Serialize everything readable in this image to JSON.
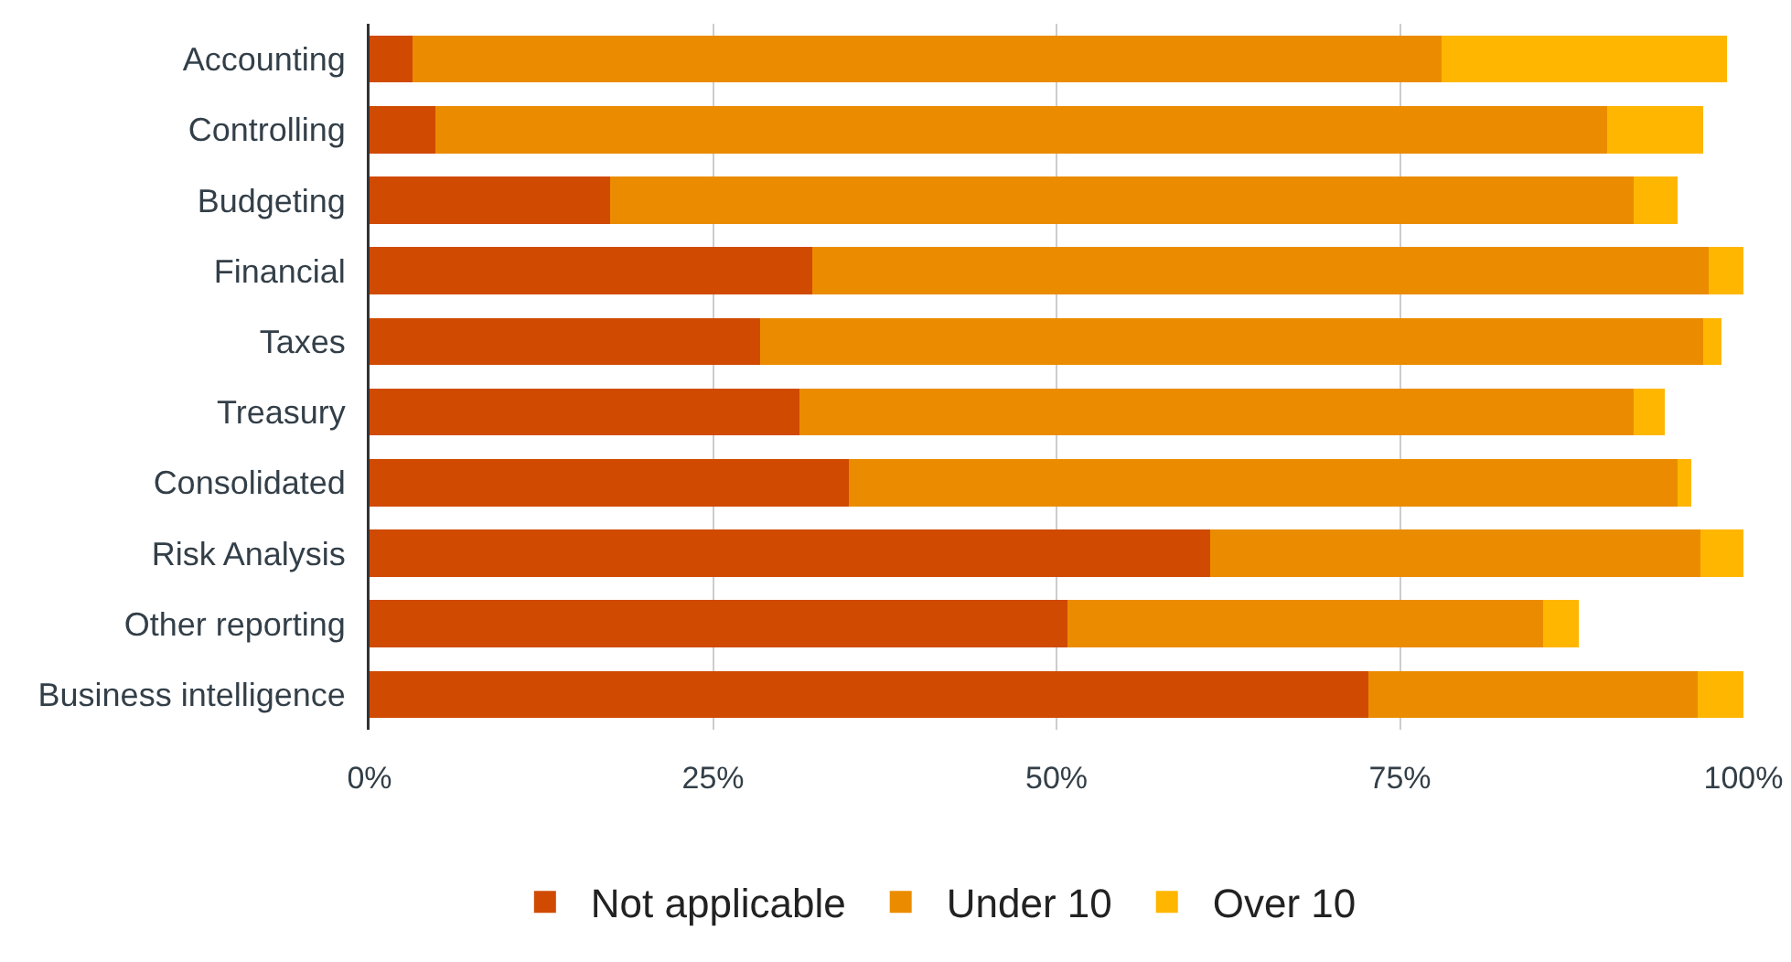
{
  "chart_data": {
    "type": "bar",
    "orientation": "horizontal",
    "stacked": true,
    "categories": [
      "Accounting",
      "Controlling",
      "Budgeting",
      "Financial",
      "Taxes",
      "Treasury",
      "Consolidated",
      "Risk Analysis",
      "Other reporting",
      "Business intelligence"
    ],
    "series": [
      {
        "name": "Not applicable",
        "color": "#d04a02",
        "values": [
          3.1,
          4.8,
          17.5,
          32.2,
          28.4,
          31.3,
          34.9,
          61.2,
          50.8,
          72.7
        ]
      },
      {
        "name": "Under 10",
        "color": "#eb8c00",
        "values": [
          74.9,
          85.3,
          74.5,
          65.3,
          68.7,
          60.7,
          60.3,
          35.7,
          34.6,
          24.0
        ]
      },
      {
        "name": "Over 10",
        "color": "#ffb600",
        "values": [
          20.8,
          7.0,
          3.2,
          2.5,
          1.3,
          2.3,
          1.0,
          3.1,
          2.6,
          3.3
        ]
      }
    ],
    "xlim": [
      0,
      100
    ],
    "xticks": [
      {
        "value": 0,
        "label": "0%"
      },
      {
        "value": 25,
        "label": "25%"
      },
      {
        "value": 50,
        "label": "50%"
      },
      {
        "value": 75,
        "label": "75%"
      },
      {
        "value": 100,
        "label": "100%"
      }
    ],
    "grid": "x",
    "legend": "bottom"
  }
}
